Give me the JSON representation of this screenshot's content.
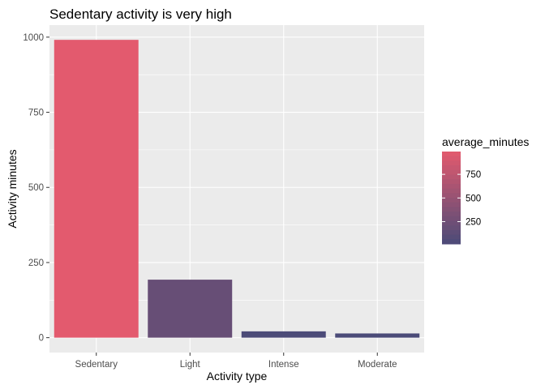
{
  "chart_data": {
    "type": "bar",
    "title": "Sedentary activity is very high",
    "xlabel": "Activity type",
    "ylabel": "Activity minutes",
    "categories": [
      "Sedentary",
      "Light",
      "Intense",
      "Moderate"
    ],
    "values": [
      991,
      193,
      21,
      14
    ],
    "ylim": [
      -49.5,
      1040
    ],
    "yticks": [
      0,
      250,
      500,
      750,
      1000
    ],
    "grid": true,
    "panel_background": "#EBEBEB",
    "fill_scale": {
      "low": "#4B4B78",
      "high": "#E35A6E",
      "domain": [
        14,
        991
      ]
    },
    "legend": {
      "title": "average_minutes",
      "position": "right",
      "breaks": [
        250,
        500,
        750
      ]
    }
  }
}
